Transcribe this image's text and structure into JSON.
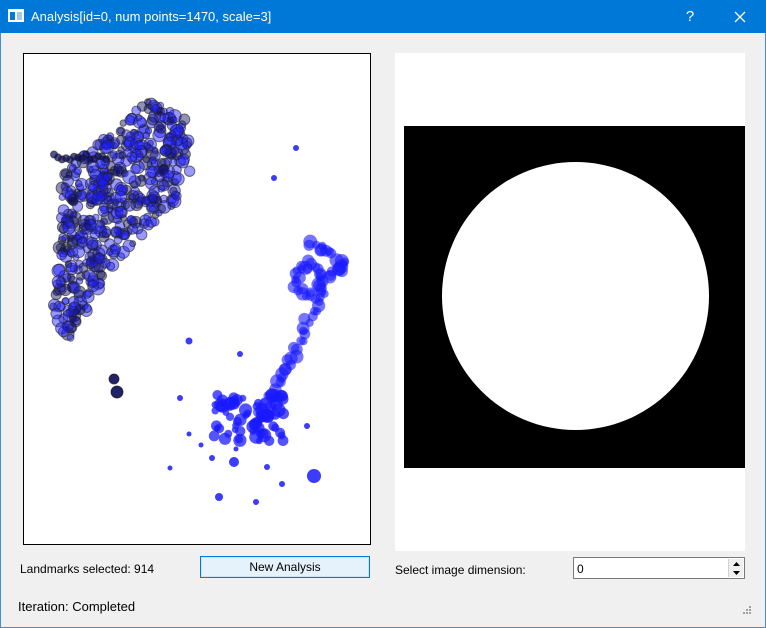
{
  "window": {
    "title": "Analysis[id=0, num points=1470, scale=3]",
    "help_label": "?",
    "close_icon": "close-icon",
    "app_icon": "window-icon",
    "titlebar_color": "#0078d7"
  },
  "left": {
    "landmarks_label": "Landmarks selected: 914",
    "new_analysis_label": "New Analysis"
  },
  "right": {
    "dimension_label": "Select image dimension:",
    "dimension_value": "0"
  },
  "status": {
    "text": "Iteration: Completed"
  },
  "colors": {
    "point_blue": "#1a1aff",
    "point_dark": "#0a0a5a",
    "image_background": "#000000",
    "sphere": "#ffffff"
  }
}
